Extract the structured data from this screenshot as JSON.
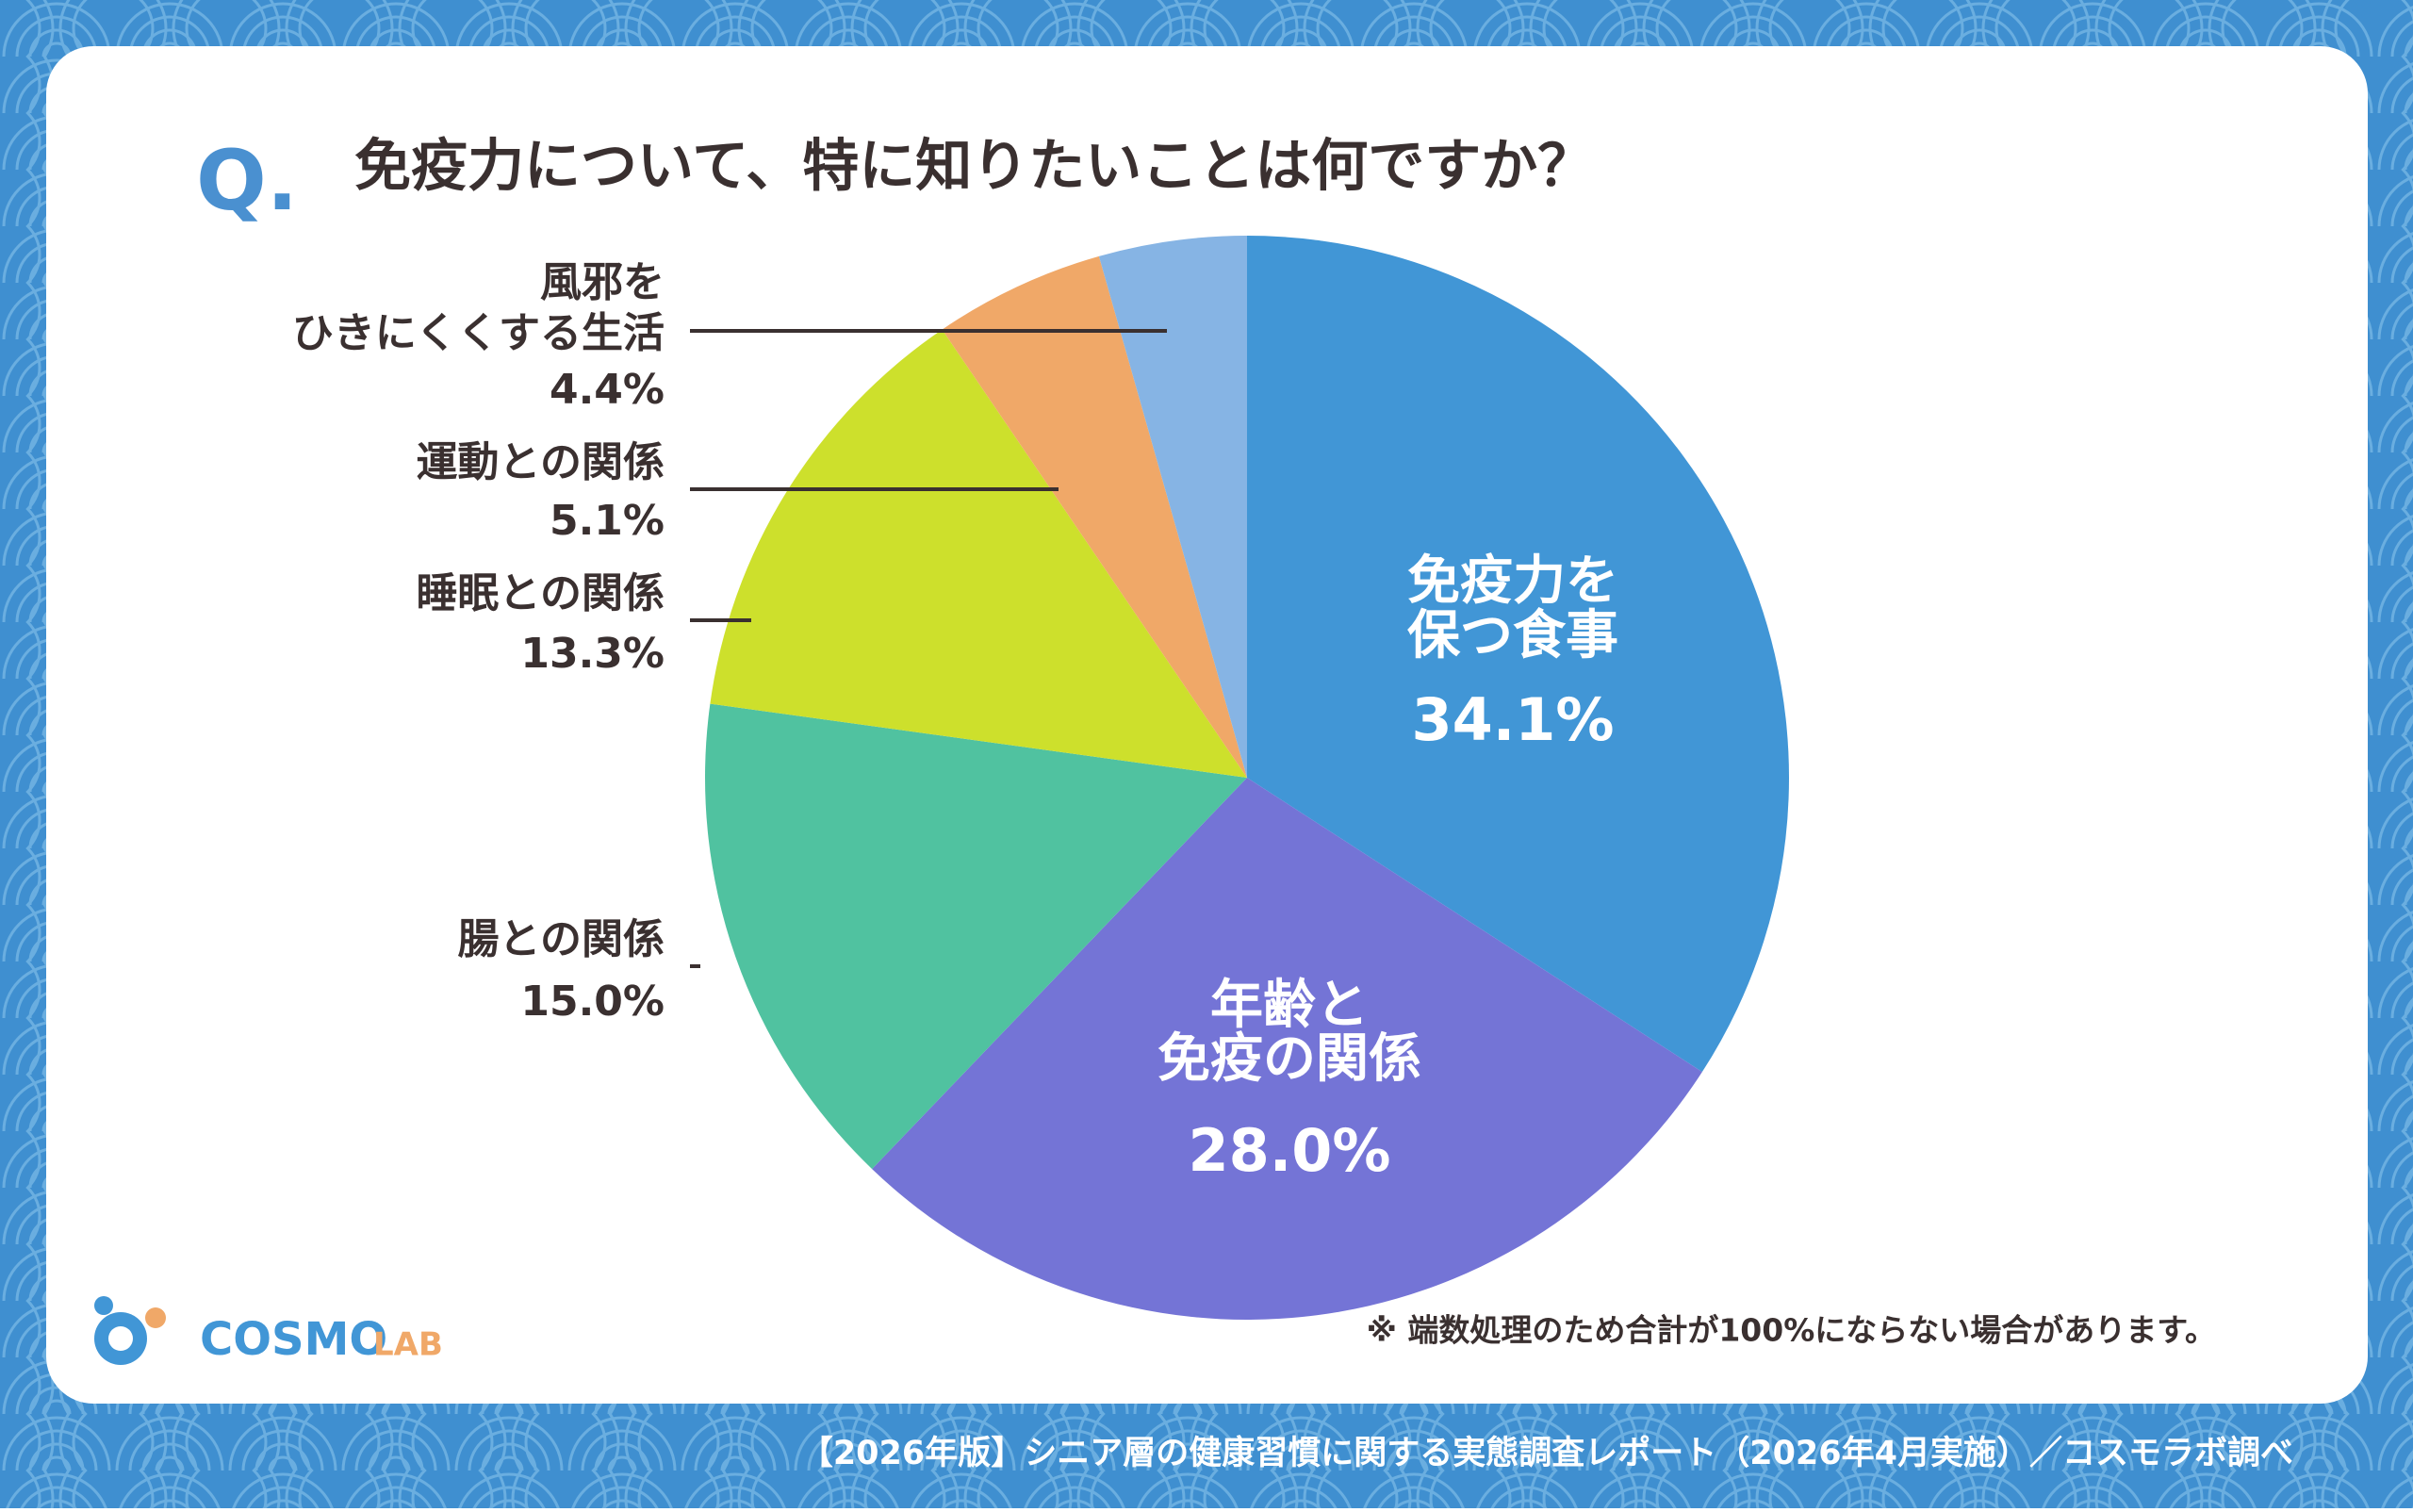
{
  "badge": "Q.",
  "logo": {
    "text1": "COSMO",
    "text2": "LAB"
  },
  "chart_data": {
    "type": "pie",
    "title": "免疫力について、特に知りたいことは何ですか？",
    "categories": [
      [
        "免疫力を",
        "保つ食事"
      ],
      [
        "年齢と",
        "免疫の関係"
      ],
      [
        "腸との関係"
      ],
      [
        "睡眠との関係"
      ],
      [
        "運動との関係"
      ],
      [
        "風邪を",
        "ひきにくくする生活"
      ]
    ],
    "values": [
      34.1,
      28.0,
      15.0,
      13.3,
      5.1,
      4.4
    ],
    "value_labels": [
      "34.1%",
      "28.0%",
      "15.0%",
      "13.3%",
      "5.1%",
      "4.4%"
    ],
    "colors": [
      "#4196d6",
      "#7474d6",
      "#50c2a0",
      "#cde02c",
      "#f0a868",
      "#86b4e4"
    ],
    "note": "※ 端数処理のため合計が100%にならない場合があります。",
    "source": "【2026年版】シニア層の健康習慣に関する実態調査レポート（2026年4月実施）／コスモラボ調べ"
  }
}
